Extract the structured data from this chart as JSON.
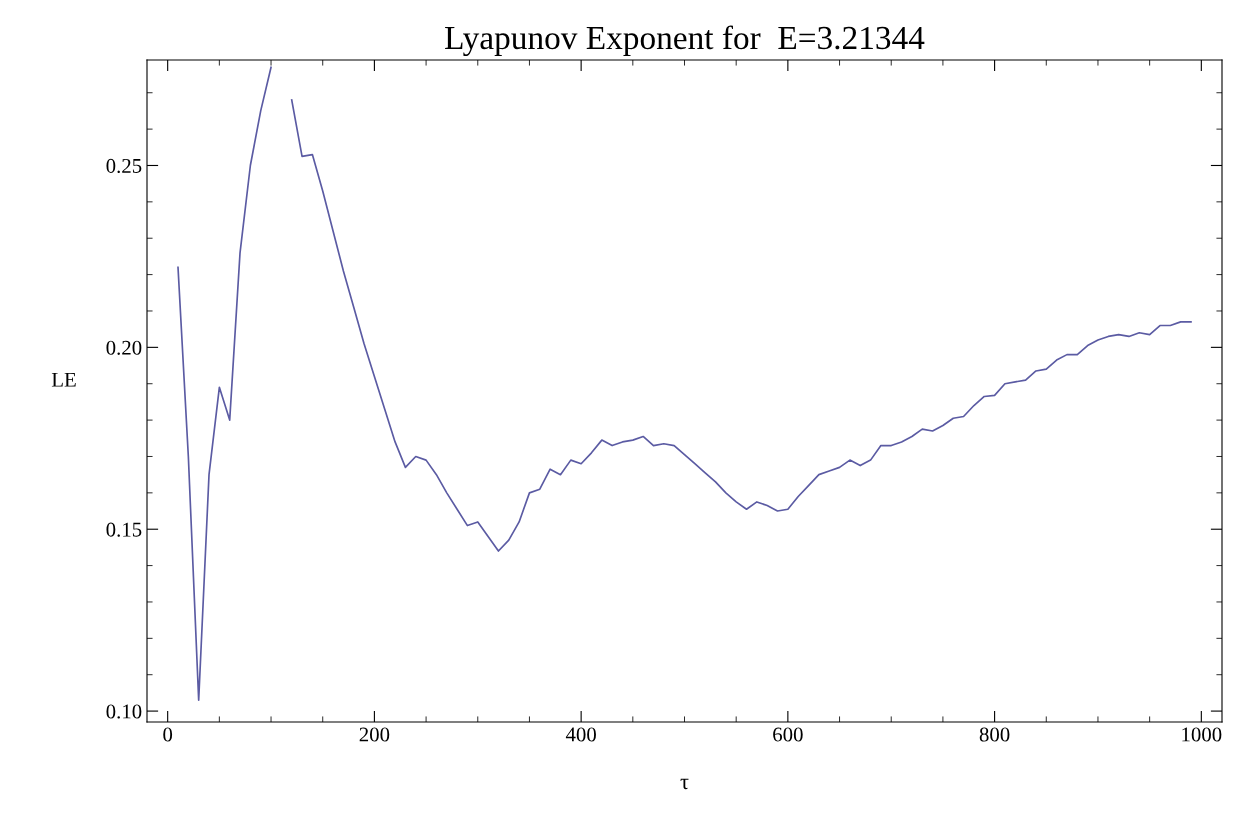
{
  "chart_data": {
    "type": "line",
    "title": "Lyapunov Exponent for  E=3.21344",
    "xlabel": "τ",
    "ylabel": "LE",
    "x": [
      10,
      20,
      30,
      40,
      50,
      60,
      70,
      80,
      90,
      100,
      110,
      120,
      130,
      140,
      150,
      160,
      170,
      180,
      190,
      200,
      210,
      220,
      230,
      240,
      250,
      260,
      270,
      280,
      290,
      300,
      310,
      320,
      330,
      340,
      350,
      360,
      370,
      380,
      390,
      400,
      410,
      420,
      430,
      440,
      450,
      460,
      470,
      480,
      490,
      500,
      510,
      520,
      530,
      540,
      550,
      560,
      570,
      580,
      590,
      600,
      610,
      620,
      630,
      640,
      650,
      660,
      670,
      680,
      690,
      700,
      710,
      720,
      730,
      740,
      750,
      760,
      770,
      780,
      790,
      800,
      810,
      820,
      830,
      840,
      850,
      860,
      870,
      880,
      890,
      900,
      910,
      920,
      930,
      940,
      950,
      960,
      970,
      980,
      990
    ],
    "series": [
      {
        "color": "#5b5ba3",
        "values": [
          0.222,
          0.17,
          0.103,
          0.165,
          0.189,
          0.18,
          0.226,
          0.25,
          0.265,
          0.277,
          null,
          0.268,
          0.2525,
          0.253,
          0.243,
          0.232,
          0.221,
          0.211,
          0.201,
          0.192,
          0.183,
          0.174,
          0.167,
          0.17,
          0.169,
          0.165,
          0.16,
          0.1555,
          0.151,
          0.152,
          0.148,
          0.144,
          0.147,
          0.152,
          0.16,
          0.161,
          0.1665,
          0.165,
          0.169,
          0.168,
          0.171,
          0.1745,
          0.173,
          0.174,
          0.1745,
          0.1755,
          0.173,
          0.1735,
          0.173,
          0.1705,
          0.168,
          0.1655,
          0.163,
          0.16,
          0.1575,
          0.1555,
          0.1575,
          0.1565,
          0.155,
          0.1555,
          0.159,
          0.162,
          0.165,
          0.166,
          0.167,
          0.169,
          0.1675,
          0.169,
          0.173,
          0.173,
          0.174,
          0.1755,
          0.1775,
          0.177,
          0.1785,
          0.1805,
          0.181,
          0.184,
          0.1865,
          0.1868,
          0.19,
          0.1905,
          0.191,
          0.1935,
          0.194,
          0.1965,
          0.198,
          0.198,
          0.2005,
          0.202,
          0.203,
          0.2035,
          0.203,
          0.204,
          0.2035,
          0.206,
          0.206,
          0.207,
          0.207
        ]
      }
    ],
    "xlim": [
      -20,
      1020
    ],
    "ylim": [
      0.097,
      0.279
    ],
    "xticks": [
      0,
      200,
      400,
      600,
      800,
      1000
    ],
    "yticks": [
      {
        "value": 0.1,
        "label": "0.10"
      },
      {
        "value": 0.15,
        "label": "0.15"
      },
      {
        "value": 0.2,
        "label": "0.20"
      },
      {
        "value": 0.25,
        "label": "0.25"
      }
    ],
    "grid": false,
    "legend": false,
    "marker": "none",
    "line_style": "solid"
  }
}
